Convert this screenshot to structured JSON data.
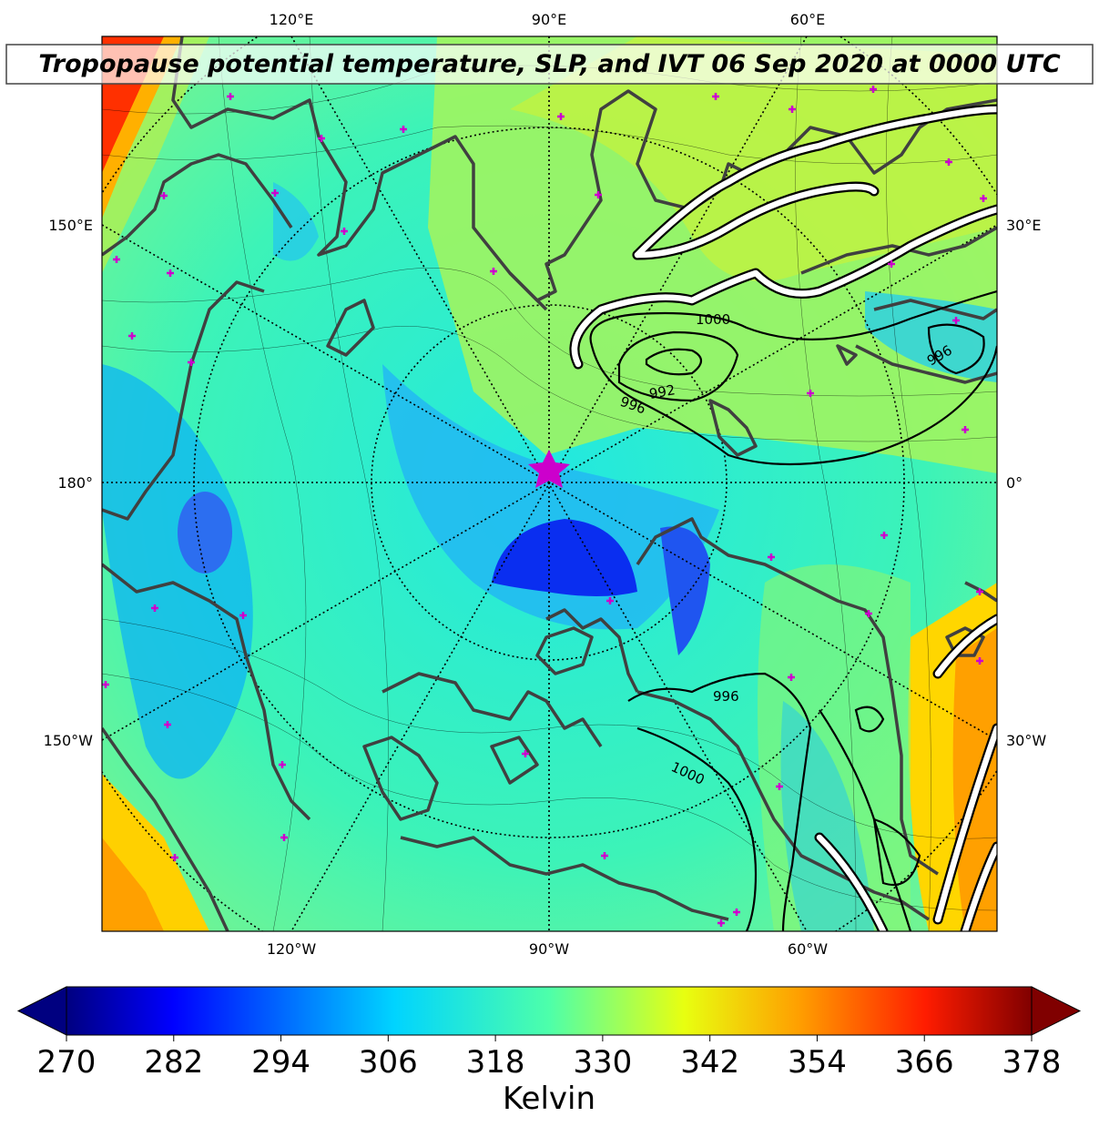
{
  "title": "Tropopause potential temperature, SLP, and IVT 06 Sep 2020 at 0000 UTC",
  "map": {
    "projection": "north polar stereographic",
    "field": "tropopause potential temperature",
    "overlays": [
      "sea level pressure contours",
      "integrated vapor transport contours",
      "coastlines",
      "graticule"
    ],
    "marker": "star at pole region",
    "top_labels": [
      "120°E",
      "90°E",
      "60°E"
    ],
    "bottom_labels": [
      "120°W",
      "90°W",
      "60°W"
    ],
    "left_labels": [
      "150°E",
      "180°",
      "150°W"
    ],
    "right_labels": [
      "30°E",
      "0°",
      "30°W"
    ],
    "slp_labels": [
      "1000",
      "996",
      "992",
      "996",
      "996",
      "1000"
    ]
  },
  "colorbar": {
    "ticks": [
      "270",
      "282",
      "294",
      "306",
      "318",
      "330",
      "342",
      "354",
      "366",
      "378"
    ],
    "label": "Kelvin",
    "colormap": "jet",
    "range": [
      270,
      381
    ]
  },
  "colors": {
    "coast": "#404040",
    "marker": "#cc00cc",
    "ivt": "#ffffff",
    "slp": "#000000"
  }
}
